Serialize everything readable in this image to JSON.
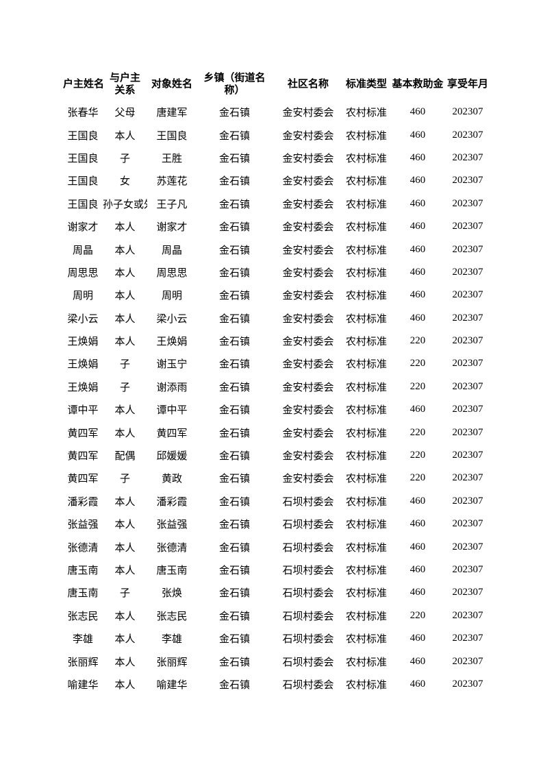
{
  "page": {
    "background_color": "#ffffff",
    "text_color": "#000000"
  },
  "table": {
    "columns": [
      {
        "key": "household_head",
        "label": "户主姓名"
      },
      {
        "key": "relation_to_head",
        "label": "与户主\n关系"
      },
      {
        "key": "person_name",
        "label": "对象姓名"
      },
      {
        "key": "township",
        "label": "乡镇（街道名\n称）"
      },
      {
        "key": "community",
        "label": "社区名称"
      },
      {
        "key": "standard_type",
        "label": "标准类型"
      },
      {
        "key": "basic_subsidy",
        "label": "基本救助金"
      },
      {
        "key": "benefit_month",
        "label": "享受年月"
      }
    ],
    "rows": [
      [
        "张春华",
        "父母",
        "唐建军",
        "金石镇",
        "金安村委会",
        "农村标准",
        "460",
        "202307"
      ],
      [
        "王国良",
        "本人",
        "王国良",
        "金石镇",
        "金安村委会",
        "农村标准",
        "460",
        "202307"
      ],
      [
        "王国良",
        "子",
        "王胜",
        "金石镇",
        "金安村委会",
        "农村标准",
        "460",
        "202307"
      ],
      [
        "王国良",
        "女",
        "苏莲花",
        "金石镇",
        "金安村委会",
        "农村标准",
        "460",
        "202307"
      ],
      [
        "王国良",
        "孙子女或外孙子女",
        "王子凡",
        "金石镇",
        "金安村委会",
        "农村标准",
        "460",
        "202307"
      ],
      [
        "谢家才",
        "本人",
        "谢家才",
        "金石镇",
        "金安村委会",
        "农村标准",
        "460",
        "202307"
      ],
      [
        "周晶",
        "本人",
        "周晶",
        "金石镇",
        "金安村委会",
        "农村标准",
        "460",
        "202307"
      ],
      [
        "周思思",
        "本人",
        "周思思",
        "金石镇",
        "金安村委会",
        "农村标准",
        "460",
        "202307"
      ],
      [
        "周明",
        "本人",
        "周明",
        "金石镇",
        "金安村委会",
        "农村标准",
        "460",
        "202307"
      ],
      [
        "梁小云",
        "本人",
        "梁小云",
        "金石镇",
        "金安村委会",
        "农村标准",
        "460",
        "202307"
      ],
      [
        "王焕娟",
        "本人",
        "王焕娟",
        "金石镇",
        "金安村委会",
        "农村标准",
        "220",
        "202307"
      ],
      [
        "王焕娟",
        "子",
        "谢玉宁",
        "金石镇",
        "金安村委会",
        "农村标准",
        "220",
        "202307"
      ],
      [
        "王焕娟",
        "子",
        "谢添雨",
        "金石镇",
        "金安村委会",
        "农村标准",
        "220",
        "202307"
      ],
      [
        "谭中平",
        "本人",
        "谭中平",
        "金石镇",
        "金安村委会",
        "农村标准",
        "460",
        "202307"
      ],
      [
        "黄四军",
        "本人",
        "黄四军",
        "金石镇",
        "金安村委会",
        "农村标准",
        "220",
        "202307"
      ],
      [
        "黄四军",
        "配偶",
        "邱媛媛",
        "金石镇",
        "金安村委会",
        "农村标准",
        "220",
        "202307"
      ],
      [
        "黄四军",
        "子",
        "黄政",
        "金石镇",
        "金安村委会",
        "农村标准",
        "220",
        "202307"
      ],
      [
        "潘彩霞",
        "本人",
        "潘彩霞",
        "金石镇",
        "石坝村委会",
        "农村标准",
        "460",
        "202307"
      ],
      [
        "张益强",
        "本人",
        "张益强",
        "金石镇",
        "石坝村委会",
        "农村标准",
        "460",
        "202307"
      ],
      [
        "张德清",
        "本人",
        "张德清",
        "金石镇",
        "石坝村委会",
        "农村标准",
        "460",
        "202307"
      ],
      [
        "唐玉南",
        "本人",
        "唐玉南",
        "金石镇",
        "石坝村委会",
        "农村标准",
        "460",
        "202307"
      ],
      [
        "唐玉南",
        "子",
        "张焕",
        "金石镇",
        "石坝村委会",
        "农村标准",
        "460",
        "202307"
      ],
      [
        "张志民",
        "本人",
        "张志民",
        "金石镇",
        "石坝村委会",
        "农村标准",
        "220",
        "202307"
      ],
      [
        "李雄",
        "本人",
        "李雄",
        "金石镇",
        "石坝村委会",
        "农村标准",
        "460",
        "202307"
      ],
      [
        "张丽辉",
        "本人",
        "张丽辉",
        "金石镇",
        "石坝村委会",
        "农村标准",
        "460",
        "202307"
      ],
      [
        "喻建华",
        "本人",
        "喻建华",
        "金石镇",
        "石坝村委会",
        "农村标准",
        "460",
        "202307"
      ]
    ]
  }
}
